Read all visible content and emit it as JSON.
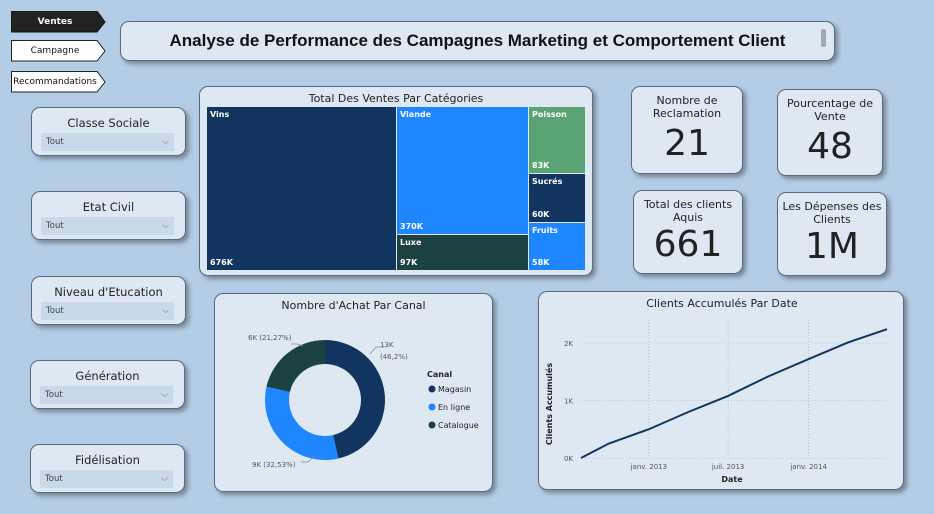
{
  "nav": {
    "tabs": [
      {
        "label": "Ventes",
        "active": true
      },
      {
        "label": "Campagne",
        "active": false
      },
      {
        "label": "Recommandations",
        "active": false
      }
    ]
  },
  "title": "Analyse de Performance des Campagnes Marketing et Comportement Client",
  "slicers": [
    {
      "label": "Classe Sociale",
      "value": "Tout"
    },
    {
      "label": "Etat Civil",
      "value": "Tout"
    },
    {
      "label": "Niveau d'Etucation",
      "value": "Tout"
    },
    {
      "label": "Génération",
      "value": "Tout"
    },
    {
      "label": "Fidélisation",
      "value": "Tout"
    }
  ],
  "kpis": {
    "reclamation": {
      "label": "Nombre de Reclamation",
      "value": "21"
    },
    "pct_vente": {
      "label": "Pourcentage de Vente",
      "value": "48"
    },
    "clients": {
      "label": "Total des clients Aquis",
      "value": "661"
    },
    "depenses": {
      "label": "Les Dépenses des Clients",
      "value": "1M"
    }
  },
  "treemap": {
    "title": "Total Des Ventes Par Catégories",
    "items": [
      {
        "name": "Vins",
        "value": "676K",
        "color": "#11355f"
      },
      {
        "name": "Viande",
        "value": "370K",
        "color": "#1e86ff"
      },
      {
        "name": "Poisson",
        "value": "83K",
        "color": "#5aa473"
      },
      {
        "name": "Sucrés",
        "value": "60K",
        "color": "#11355f"
      },
      {
        "name": "Luxe",
        "value": "97K",
        "color": "#1b4140"
      },
      {
        "name": "Fruits",
        "value": "58K",
        "color": "#1e86ff"
      }
    ]
  },
  "donut": {
    "title": "Nombre d'Achat Par Canal",
    "legend_title": "Canal",
    "slices": [
      {
        "name": "Magasin",
        "value": 13000,
        "label_value": "13K",
        "label_pct": "(46,2%)",
        "color": "#11355f"
      },
      {
        "name": "En ligne",
        "value": 9000,
        "label": "9K (32,53%)",
        "color": "#1e86ff"
      },
      {
        "name": "Catalogue",
        "value": 6000,
        "label": "6K (21,27%)",
        "color": "#1b4140"
      }
    ]
  },
  "chart_data": {
    "type": "line",
    "title": "Clients Accumulés Par Date",
    "xlabel": "Date",
    "ylabel": "Clients Accumulés",
    "x_ticks": [
      "janv. 2013",
      "juil. 2013",
      "janv. 2014"
    ],
    "y_ticks": [
      "0K",
      "1K",
      "2K"
    ],
    "ylim": [
      0,
      2400
    ],
    "x_range": [
      "2012-07-30",
      "2014-06-29"
    ],
    "series": [
      {
        "values": [
          {
            "x": "2012-07-30",
            "y": 0
          },
          {
            "x": "2012-10-01",
            "y": 250
          },
          {
            "x": "2013-01-01",
            "y": 500
          },
          {
            "x": "2013-04-01",
            "y": 800
          },
          {
            "x": "2013-07-01",
            "y": 1080
          },
          {
            "x": "2013-10-01",
            "y": 1420
          },
          {
            "x": "2014-01-01",
            "y": 1720
          },
          {
            "x": "2014-04-01",
            "y": 2010
          },
          {
            "x": "2014-06-29",
            "y": 2240
          }
        ],
        "color": "#11355f"
      }
    ]
  }
}
